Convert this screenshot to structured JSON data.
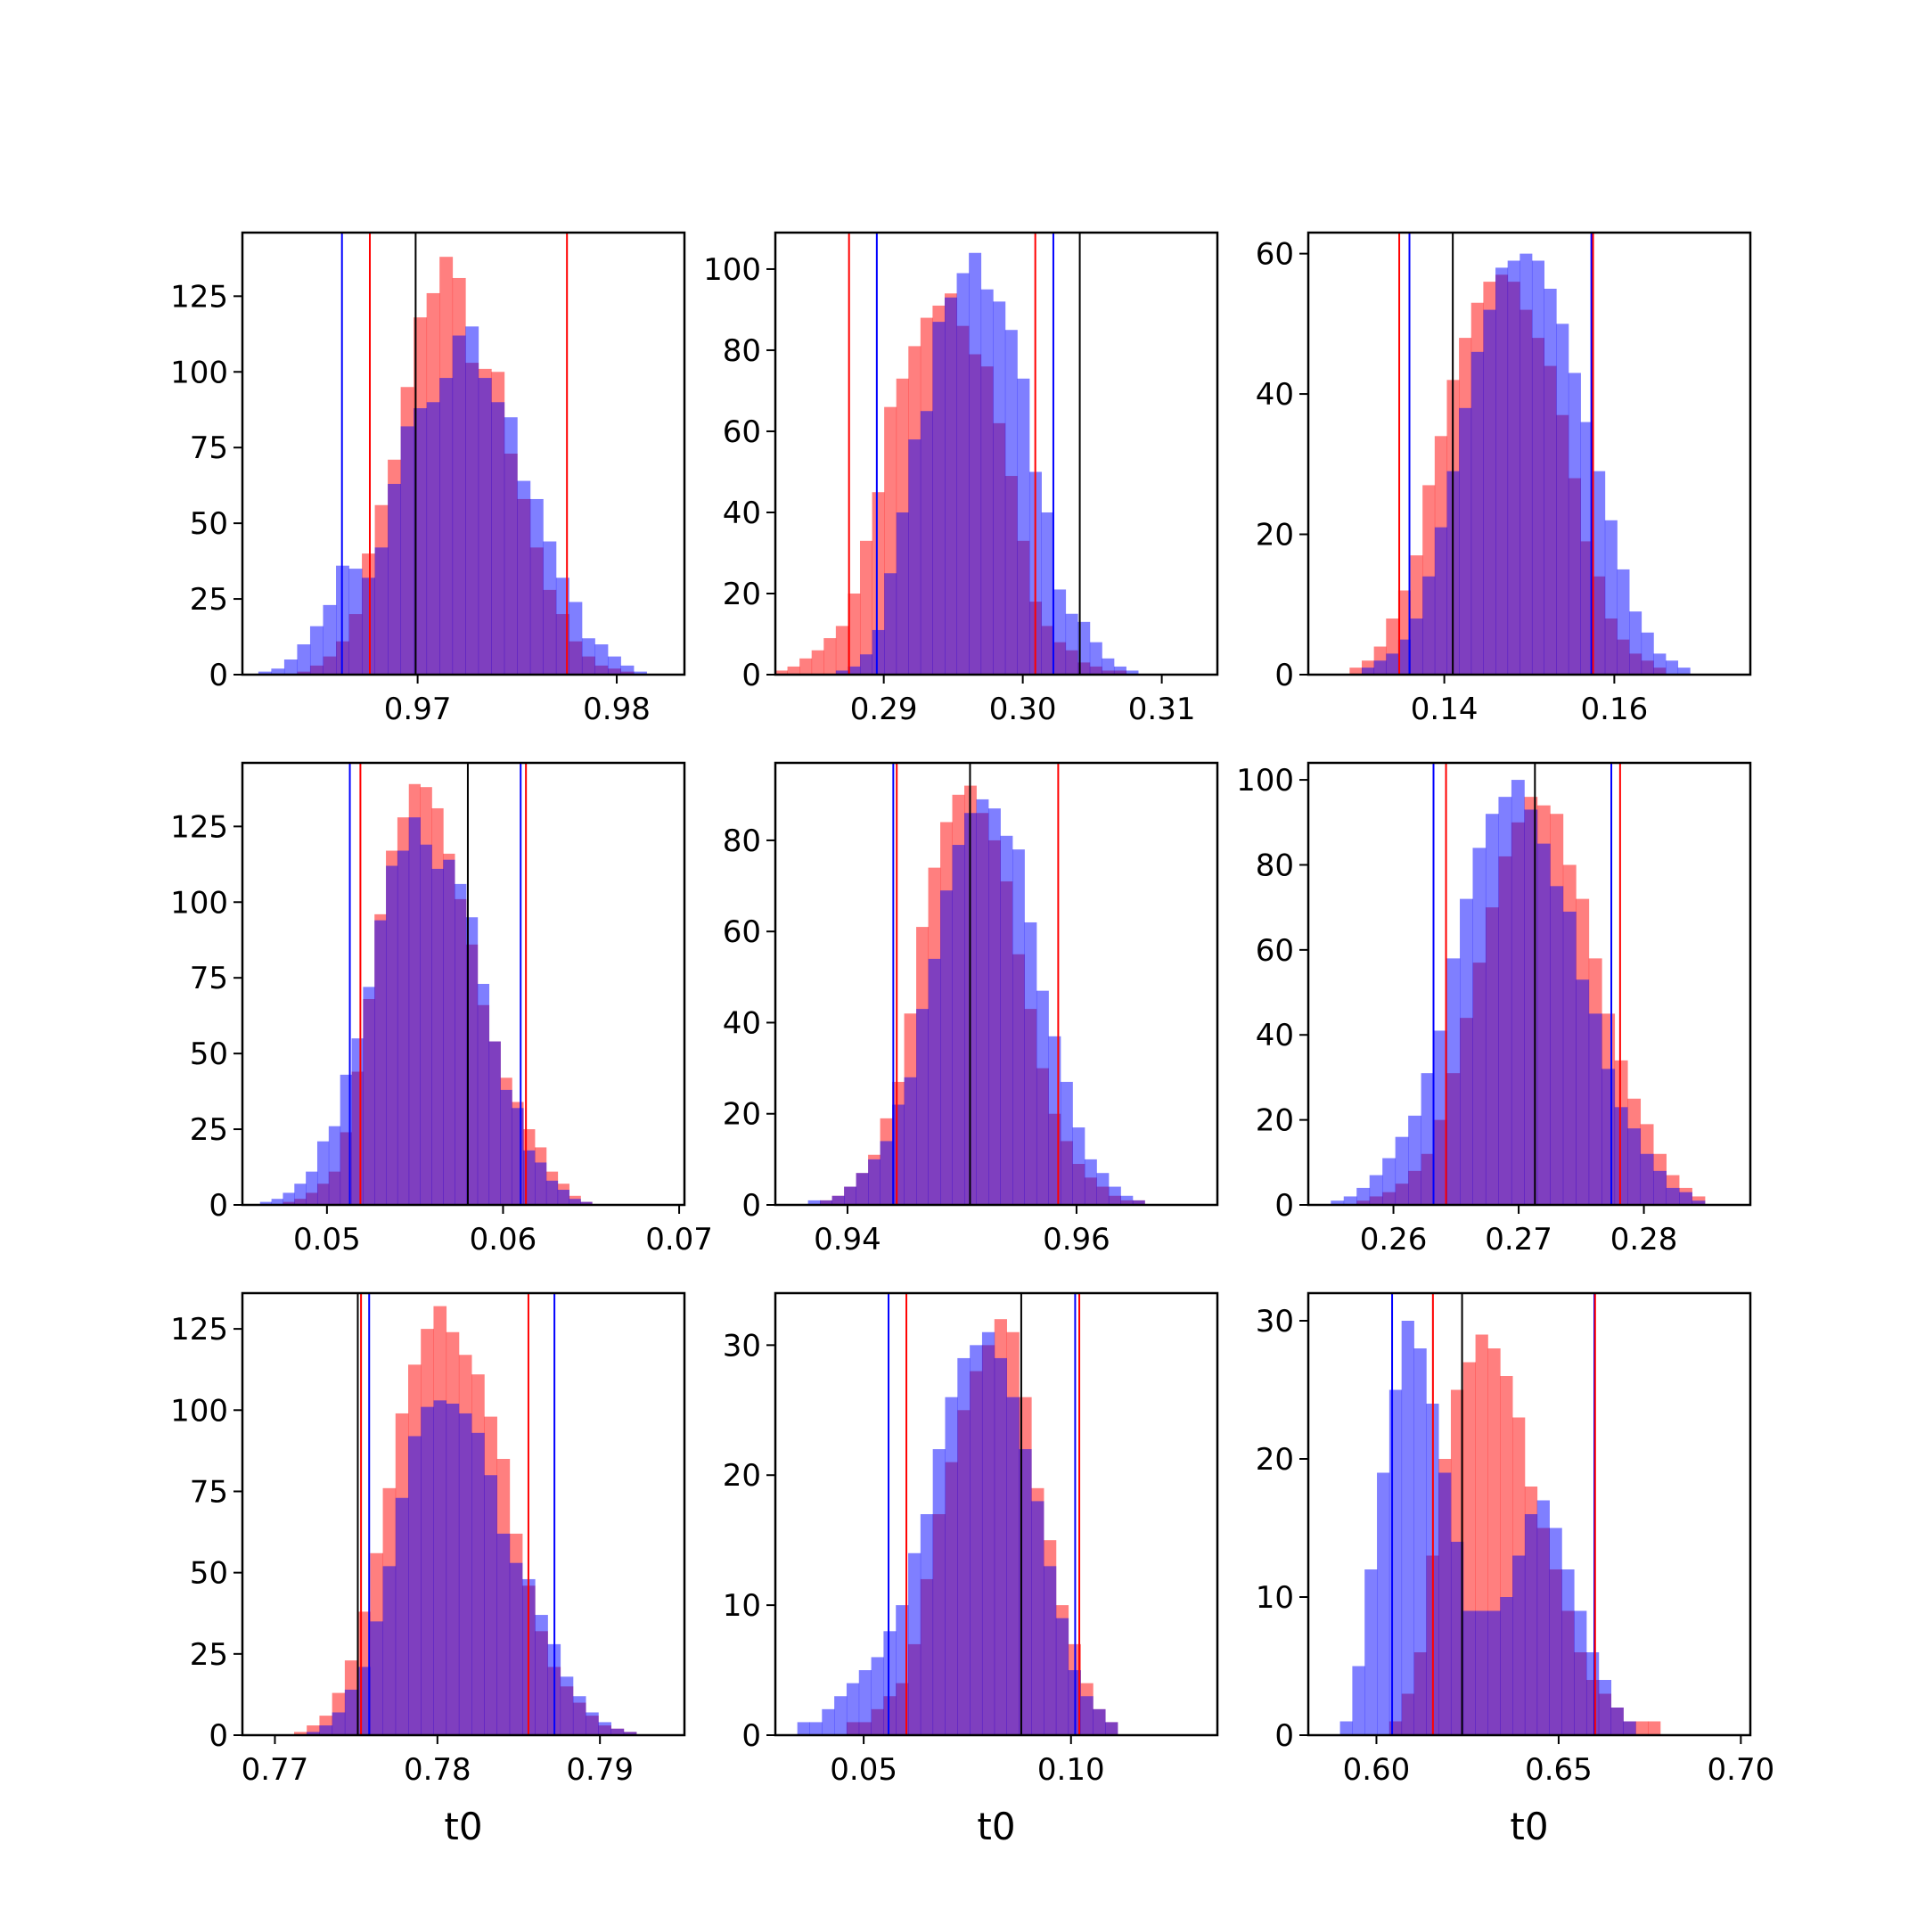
{
  "colors": {
    "red_hist": "#ff0000",
    "blue_hist": "#0000ff",
    "overlap": "#7f3fbf",
    "interval_red": "#ff0000",
    "interval_blue": "#0000ff",
    "interval_black": "#000000"
  },
  "chart_data": [
    {
      "type": "bar",
      "name": "",
      "xlim": [
        0.9612,
        0.9834
      ],
      "ylim": [
        0,
        146
      ],
      "xticks": [
        0.97,
        0.98
      ],
      "xtick_labels": [
        "0.97",
        "0.98"
      ],
      "yticks": [
        0,
        25,
        50,
        75,
        100,
        125
      ],
      "ytick_labels": [
        "0",
        "25",
        "50",
        "75",
        "100",
        "125"
      ],
      "xlabel": "",
      "bins": {
        "start": 0.962,
        "width": 0.00065,
        "count": 30
      },
      "series": [
        {
          "color": "red",
          "counts": [
            0,
            0,
            0,
            1,
            3,
            6,
            11,
            20,
            40,
            56,
            71,
            95,
            118,
            126,
            138,
            131,
            103,
            101,
            100,
            73,
            58,
            42,
            28,
            20,
            11,
            6,
            3,
            2,
            1,
            0
          ]
        },
        {
          "color": "blue",
          "counts": [
            1,
            2,
            5,
            10,
            16,
            23,
            36,
            35,
            32,
            42,
            63,
            82,
            88,
            90,
            98,
            112,
            115,
            98,
            90,
            85,
            64,
            58,
            44,
            32,
            24,
            12,
            10,
            6,
            3,
            1
          ]
        }
      ],
      "vlines": [
        {
          "color": "blue",
          "x": 0.9662
        },
        {
          "color": "red",
          "x": 0.9676
        },
        {
          "color": "black",
          "x": 0.9699
        },
        {
          "color": "red",
          "x": 0.9775
        }
      ]
    },
    {
      "type": "bar",
      "name": "",
      "xlim": [
        0.2822,
        0.314
      ],
      "ylim": [
        0,
        109
      ],
      "xticks": [
        0.29,
        0.3,
        0.31
      ],
      "xtick_labels": [
        "0.29",
        "0.30",
        "0.31"
      ],
      "yticks": [
        0,
        20,
        40,
        60,
        80,
        100
      ],
      "ytick_labels": [
        "0",
        "20",
        "40",
        "60",
        "80",
        "100"
      ],
      "xlabel": "",
      "bins": {
        "start": 0.2822,
        "width": 0.00087,
        "count": 30
      },
      "series": [
        {
          "color": "red",
          "counts": [
            1,
            2,
            4,
            6,
            9,
            12,
            20,
            33,
            45,
            66,
            73,
            81,
            88,
            91,
            94,
            86,
            79,
            76,
            62,
            49,
            33,
            18,
            12,
            8,
            6,
            3,
            2,
            1,
            1,
            0
          ]
        },
        {
          "color": "blue",
          "counts": [
            0,
            0,
            0,
            0,
            0,
            1,
            2,
            5,
            11,
            25,
            40,
            58,
            65,
            87,
            93,
            99,
            104,
            95,
            92,
            85,
            73,
            50,
            40,
            21,
            15,
            13,
            8,
            4,
            2,
            1
          ]
        }
      ],
      "vlines": [
        {
          "color": "red",
          "x": 0.2875
        },
        {
          "color": "blue",
          "x": 0.2895
        },
        {
          "color": "red",
          "x": 0.3009
        },
        {
          "color": "blue",
          "x": 0.3022
        },
        {
          "color": "black",
          "x": 0.3041
        }
      ]
    },
    {
      "type": "bar",
      "name": "",
      "xlim": [
        0.124,
        0.176
      ],
      "ylim": [
        0,
        63
      ],
      "xticks": [
        0.14,
        0.16
      ],
      "xtick_labels": [
        "0.14",
        "0.16"
      ],
      "yticks": [
        0,
        20,
        40,
        60
      ],
      "ytick_labels": [
        "0",
        "20",
        "40",
        "60"
      ],
      "xlabel": "",
      "bins": {
        "start": 0.126,
        "width": 0.00143,
        "count": 30
      },
      "series": [
        {
          "color": "red",
          "counts": [
            0,
            0,
            1,
            2,
            4,
            8,
            12,
            17,
            27,
            34,
            42,
            48,
            53,
            56,
            57,
            56,
            52,
            48,
            44,
            37,
            28,
            19,
            14,
            8,
            5,
            3,
            2,
            1,
            0,
            0
          ]
        },
        {
          "color": "blue",
          "counts": [
            0,
            0,
            0,
            1,
            2,
            3,
            5,
            8,
            14,
            21,
            29,
            38,
            46,
            52,
            58,
            59,
            60,
            59,
            55,
            50,
            43,
            36,
            29,
            22,
            15,
            9,
            6,
            3,
            2,
            1
          ]
        }
      ],
      "vlines": [
        {
          "color": "red",
          "x": 0.1347
        },
        {
          "color": "blue",
          "x": 0.1359
        },
        {
          "color": "black",
          "x": 0.141
        },
        {
          "color": "blue",
          "x": 0.1573
        },
        {
          "color": "red",
          "x": 0.1575
        }
      ]
    },
    {
      "type": "bar",
      "name": "",
      "xlim": [
        0.0452,
        0.0703
      ],
      "ylim": [
        0,
        146
      ],
      "xticks": [
        0.05,
        0.06,
        0.07
      ],
      "xtick_labels": [
        "0.05",
        "0.06",
        "0.07"
      ],
      "yticks": [
        0,
        25,
        50,
        75,
        100,
        125
      ],
      "ytick_labels": [
        "0",
        "25",
        "50",
        "75",
        "100",
        "125"
      ],
      "xlabel": "",
      "bins": {
        "start": 0.0462,
        "width": 0.00065,
        "count": 30
      },
      "series": [
        {
          "color": "red",
          "counts": [
            0,
            0,
            1,
            2,
            4,
            7,
            11,
            24,
            44,
            68,
            96,
            117,
            128,
            139,
            138,
            131,
            116,
            101,
            86,
            66,
            54,
            42,
            34,
            25,
            19,
            11,
            7,
            3,
            1,
            0
          ]
        },
        {
          "color": "blue",
          "counts": [
            1,
            2,
            4,
            7,
            11,
            21,
            26,
            43,
            55,
            72,
            94,
            112,
            117,
            128,
            119,
            111,
            114,
            106,
            95,
            73,
            54,
            38,
            32,
            18,
            14,
            8,
            5,
            2,
            1,
            0
          ]
        }
      ],
      "vlines": [
        {
          "color": "blue",
          "x": 0.0513
        },
        {
          "color": "red",
          "x": 0.0519
        },
        {
          "color": "black",
          "x": 0.058
        },
        {
          "color": "blue",
          "x": 0.061
        },
        {
          "color": "red",
          "x": 0.0613
        }
      ]
    },
    {
      "type": "bar",
      "name": "",
      "xlim": [
        0.9337,
        0.9723
      ],
      "ylim": [
        0,
        97
      ],
      "xticks": [
        0.94,
        0.96
      ],
      "xtick_labels": [
        "0.94",
        "0.96"
      ],
      "yticks": [
        0,
        20,
        40,
        60,
        80
      ],
      "ytick_labels": [
        "0",
        "20",
        "40",
        "60",
        "80"
      ],
      "xlabel": "",
      "bins": {
        "start": 0.9355,
        "width": 0.00105,
        "count": 30
      },
      "series": [
        {
          "color": "red",
          "counts": [
            0,
            0,
            1,
            2,
            4,
            7,
            11,
            19,
            27,
            42,
            61,
            74,
            84,
            90,
            92,
            86,
            80,
            71,
            55,
            43,
            30,
            20,
            14,
            9,
            6,
            4,
            2,
            1,
            1,
            0
          ]
        },
        {
          "color": "blue",
          "counts": [
            0,
            1,
            1,
            2,
            4,
            7,
            10,
            14,
            22,
            28,
            43,
            54,
            69,
            79,
            86,
            89,
            87,
            81,
            78,
            62,
            47,
            37,
            27,
            17,
            10,
            7,
            4,
            2,
            1,
            0
          ]
        }
      ],
      "vlines": [
        {
          "color": "blue",
          "x": 0.944
        },
        {
          "color": "red",
          "x": 0.9443
        },
        {
          "color": "black",
          "x": 0.9507
        },
        {
          "color": "red",
          "x": 0.9584
        }
      ]
    },
    {
      "type": "bar",
      "name": "",
      "xlim": [
        0.2532,
        0.2885
      ],
      "ylim": [
        0,
        104
      ],
      "xticks": [
        0.26,
        0.27,
        0.28
      ],
      "xtick_labels": [
        "0.26",
        "0.27",
        "0.28"
      ],
      "yticks": [
        0,
        20,
        40,
        60,
        80,
        100
      ],
      "ytick_labels": [
        "0",
        "20",
        "40",
        "60",
        "80",
        "100"
      ],
      "xlabel": "",
      "bins": {
        "start": 0.255,
        "width": 0.00103,
        "count": 30
      },
      "series": [
        {
          "color": "red",
          "counts": [
            0,
            0,
            1,
            2,
            3,
            5,
            8,
            12,
            20,
            31,
            44,
            57,
            70,
            82,
            90,
            96,
            94,
            92,
            80,
            72,
            58,
            45,
            34,
            25,
            19,
            12,
            7,
            4,
            2,
            0
          ]
        },
        {
          "color": "blue",
          "counts": [
            1,
            2,
            4,
            7,
            11,
            16,
            21,
            31,
            41,
            58,
            72,
            84,
            92,
            96,
            100,
            93,
            85,
            75,
            69,
            53,
            45,
            32,
            23,
            18,
            12,
            8,
            4,
            3,
            1,
            0
          ]
        }
      ],
      "vlines": [
        {
          "color": "blue",
          "x": 0.2632
        },
        {
          "color": "red",
          "x": 0.2642
        },
        {
          "color": "black",
          "x": 0.2713
        },
        {
          "color": "blue",
          "x": 0.2774
        },
        {
          "color": "red",
          "x": 0.2781
        }
      ]
    },
    {
      "type": "bar",
      "name": "",
      "xlim": [
        0.768,
        0.7952
      ],
      "ylim": [
        0,
        136
      ],
      "xticks": [
        0.77,
        0.78,
        0.79
      ],
      "xtick_labels": [
        "0.77",
        "0.78",
        "0.79"
      ],
      "yticks": [
        0,
        25,
        50,
        75,
        100,
        125
      ],
      "ytick_labels": [
        "0",
        "25",
        "50",
        "75",
        "100",
        "125"
      ],
      "xlabel": "t0",
      "bins": {
        "start": 0.7704,
        "width": 0.00078,
        "count": 30
      },
      "series": [
        {
          "color": "red",
          "counts": [
            0,
            1,
            3,
            6,
            13,
            23,
            38,
            56,
            76,
            99,
            114,
            125,
            132,
            124,
            117,
            111,
            98,
            85,
            62,
            46,
            32,
            21,
            15,
            10,
            6,
            3,
            2,
            1,
            0,
            0
          ]
        },
        {
          "color": "blue",
          "counts": [
            0,
            0,
            1,
            3,
            7,
            14,
            21,
            35,
            52,
            73,
            92,
            101,
            103,
            102,
            99,
            93,
            80,
            62,
            53,
            48,
            37,
            28,
            18,
            12,
            7,
            4,
            2,
            1,
            0,
            0
          ]
        }
      ],
      "vlines": [
        {
          "color": "black",
          "x": 0.7751
        },
        {
          "color": "red",
          "x": 0.7753
        },
        {
          "color": "blue",
          "x": 0.7758
        },
        {
          "color": "red",
          "x": 0.7856
        },
        {
          "color": "blue",
          "x": 0.7872
        }
      ]
    },
    {
      "type": "bar",
      "name": "",
      "xlim": [
        0.0287,
        0.1353
      ],
      "ylim": [
        0,
        34
      ],
      "xticks": [
        0.05,
        0.1
      ],
      "xtick_labels": [
        "0.05",
        "0.10"
      ],
      "yticks": [
        0,
        10,
        20,
        30
      ],
      "ytick_labels": [
        "0",
        "10",
        "20",
        "30"
      ],
      "xlabel": "t0",
      "bins": {
        "start": 0.034,
        "width": 0.00297,
        "count": 30
      },
      "series": [
        {
          "color": "red",
          "counts": [
            0,
            0,
            0,
            0,
            1,
            1,
            2,
            3,
            4,
            7,
            12,
            17,
            21,
            25,
            28,
            30,
            32,
            31,
            26,
            19,
            15,
            10,
            7,
            4,
            2,
            1,
            0,
            0,
            0,
            0
          ]
        },
        {
          "color": "blue",
          "counts": [
            1,
            1,
            2,
            3,
            4,
            5,
            6,
            8,
            10,
            14,
            17,
            22,
            26,
            29,
            30,
            31,
            29,
            26,
            22,
            18,
            13,
            9,
            5,
            3,
            2,
            1,
            0,
            0,
            0,
            0
          ]
        }
      ],
      "vlines": [
        {
          "color": "blue",
          "x": 0.056
        },
        {
          "color": "red",
          "x": 0.0603
        },
        {
          "color": "black",
          "x": 0.088
        },
        {
          "color": "blue",
          "x": 0.101
        },
        {
          "color": "red",
          "x": 0.102
        }
      ]
    },
    {
      "type": "bar",
      "name": "",
      "xlim": [
        0.5813,
        0.7026
      ],
      "ylim": [
        0,
        32
      ],
      "xticks": [
        0.6,
        0.65,
        0.7
      ],
      "xtick_labels": [
        "0.60",
        "0.65",
        "0.70"
      ],
      "yticks": [
        0,
        10,
        20,
        30
      ],
      "ytick_labels": [
        "0",
        "10",
        "20",
        "30"
      ],
      "xlabel": "t0",
      "bins": {
        "start": 0.59,
        "width": 0.00338,
        "count": 30
      },
      "series": [
        {
          "color": "red",
          "counts": [
            0,
            0,
            0,
            0,
            1,
            3,
            6,
            13,
            20,
            25,
            27,
            29,
            28,
            26,
            23,
            18,
            15,
            12,
            9,
            6,
            4,
            3,
            2,
            1,
            1,
            1,
            0,
            0,
            0,
            0
          ]
        },
        {
          "color": "blue",
          "counts": [
            1,
            5,
            12,
            19,
            25,
            30,
            28,
            24,
            19,
            14,
            9,
            9,
            9,
            10,
            13,
            16,
            17,
            15,
            12,
            9,
            6,
            4,
            2,
            1,
            0,
            0,
            0,
            0,
            0,
            0
          ]
        }
      ],
      "vlines": [
        {
          "color": "blue",
          "x": 0.6043
        },
        {
          "color": "red",
          "x": 0.6155
        },
        {
          "color": "black",
          "x": 0.6235
        },
        {
          "color": "blue",
          "x": 0.6598
        },
        {
          "color": "red",
          "x": 0.66
        }
      ]
    }
  ]
}
